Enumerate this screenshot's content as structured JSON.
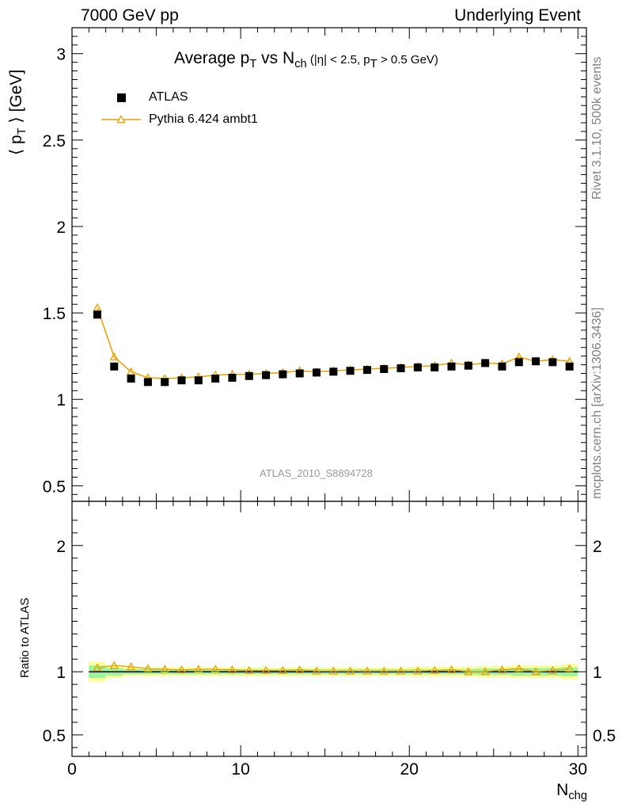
{
  "header": {
    "left": "7000 GeV pp",
    "right": "Underlying Event"
  },
  "title": {
    "main": "Average p",
    "main_sub": "T",
    "vs": " vs N",
    "vs_sub": "ch",
    "cuts_open": " (|η| < 2.5, p",
    "cuts_sub": "T",
    "cuts_close": " > 0.5 GeV)"
  },
  "axis": {
    "ylabel_main": "⟨ p",
    "ylabel_main_sub": "T",
    "ylabel_main_end": " ⟩ [GeV]",
    "ylabel_ratio": "Ratio to ATLAS",
    "xlabel": "N",
    "xlabel_sub": "chg"
  },
  "side": {
    "rivet": "Rivet 3.1.10,  500k events",
    "mcplots": "mcplots.cern.ch [arXiv:1306.3436]"
  },
  "watermark": "ATLAS_2010_S8894728",
  "legend": {
    "atlas": "ATLAS",
    "pythia": "Pythia 6.424 ambt1"
  },
  "colors": {
    "atlas": "#000000",
    "pythia": "#e8a000",
    "band_inner": "#9cf59c",
    "band_outer": "#ffff99"
  },
  "chart_data": {
    "type": "scatter",
    "title": "Average pT vs Nch (|eta| < 2.5, pT > 0.5 GeV)",
    "xlabel": "Nchg",
    "ylabel": "<pT> [GeV]",
    "xlim": [
      0,
      30.5
    ],
    "ylim": [
      0.41,
      3.15
    ],
    "x_ticks": [
      "0",
      "10",
      "20",
      "30"
    ],
    "y_ticks": [
      "0.5",
      "1",
      "1.5",
      "2",
      "2.5",
      "3"
    ],
    "ratio_ylim": [
      0.33,
      2.35
    ],
    "ratio_ticks": [
      "0.5",
      "1",
      "2"
    ],
    "x": [
      1.5,
      2.5,
      3.5,
      4.5,
      5.5,
      6.5,
      7.5,
      8.5,
      9.5,
      10.5,
      11.5,
      12.5,
      13.5,
      14.5,
      15.5,
      16.5,
      17.5,
      18.5,
      19.5,
      20.5,
      21.5,
      22.5,
      23.5,
      24.5,
      25.5,
      26.5,
      27.5,
      28.5,
      29.5
    ],
    "series": [
      {
        "name": "ATLAS",
        "values": [
          1.49,
          1.19,
          1.12,
          1.1,
          1.1,
          1.11,
          1.11,
          1.12,
          1.125,
          1.135,
          1.14,
          1.145,
          1.15,
          1.155,
          1.16,
          1.165,
          1.17,
          1.175,
          1.18,
          1.185,
          1.185,
          1.19,
          1.195,
          1.21,
          1.19,
          1.215,
          1.22,
          1.215,
          1.19
        ]
      },
      {
        "name": "Pythia 6.424 ambt1",
        "values": [
          1.53,
          1.245,
          1.16,
          1.125,
          1.12,
          1.125,
          1.13,
          1.14,
          1.145,
          1.145,
          1.15,
          1.155,
          1.165,
          1.16,
          1.165,
          1.17,
          1.175,
          1.18,
          1.185,
          1.19,
          1.195,
          1.21,
          1.2,
          1.21,
          1.205,
          1.245,
          1.22,
          1.23,
          1.22
        ]
      }
    ],
    "ratio": [
      1.03,
      1.05,
      1.04,
      1.025,
      1.02,
      1.015,
      1.02,
      1.02,
      1.015,
      1.01,
      1.01,
      1.01,
      1.015,
      1.005,
      1.005,
      1.005,
      1.005,
      1.005,
      1.005,
      1.005,
      1.01,
      1.015,
      1.0,
      1.0,
      1.015,
      1.025,
      1.0,
      1.01,
      1.025
    ],
    "ratio_band_inner": [
      0.05,
      0.03,
      0.02,
      0.02,
      0.02,
      0.02,
      0.02,
      0.02,
      0.02,
      0.02,
      0.02,
      0.02,
      0.02,
      0.02,
      0.02,
      0.02,
      0.02,
      0.02,
      0.02,
      0.02,
      0.02,
      0.02,
      0.02,
      0.025,
      0.025,
      0.03,
      0.03,
      0.03,
      0.035
    ],
    "ratio_band_outer": [
      0.08,
      0.05,
      0.035,
      0.035,
      0.035,
      0.035,
      0.035,
      0.035,
      0.035,
      0.035,
      0.035,
      0.035,
      0.035,
      0.035,
      0.035,
      0.035,
      0.035,
      0.035,
      0.035,
      0.04,
      0.04,
      0.04,
      0.04,
      0.045,
      0.045,
      0.05,
      0.05,
      0.05,
      0.06
    ]
  }
}
